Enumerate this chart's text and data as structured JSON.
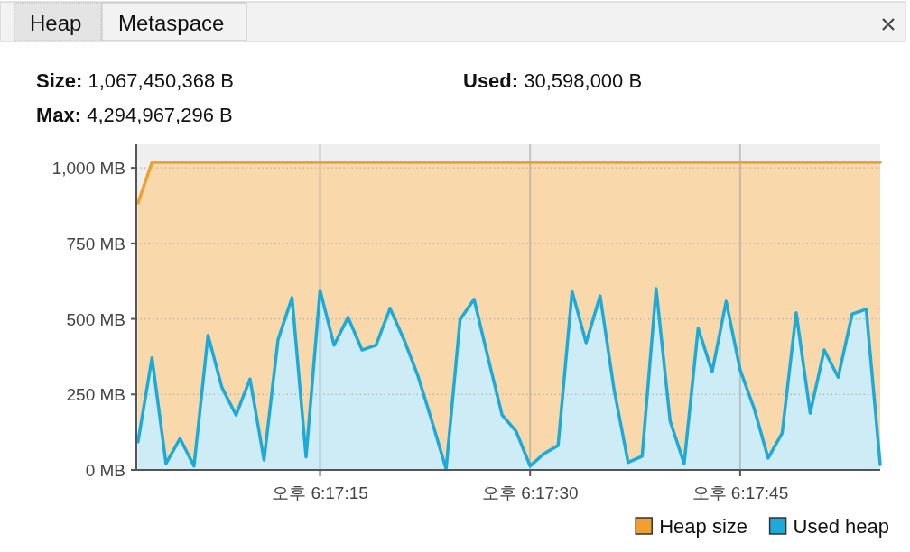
{
  "chart_data": {
    "type": "area",
    "annotations": [
      "Heap",
      "Metaspace",
      "Size: 1,067,450,368 B",
      "Used: 30,598,000 B",
      "Max: 4,294,967,296 B"
    ],
    "categories": [
      null,
      null,
      null,
      null,
      null,
      null,
      null,
      null,
      null,
      null,
      null,
      null,
      null,
      "오후 6:17:15",
      null,
      null,
      null,
      null,
      null,
      null,
      null,
      null,
      null,
      null,
      null,
      null,
      null,
      null,
      "오후 6:17:30",
      null,
      null,
      null,
      null,
      null,
      null,
      null,
      null,
      null,
      null,
      null,
      null,
      null,
      null,
      "오후 6:17:45",
      null,
      null,
      null,
      null,
      null,
      null,
      null,
      null,
      null,
      null
    ],
    "series": [
      {
        "name": "Used heap",
        "color": "#1eaad8",
        "values": [
          93,
          371,
          21,
          104,
          13,
          446,
          272,
          182,
          301,
          33,
          431,
          570,
          43,
          595,
          413,
          505,
          397,
          413,
          535,
          431,
          310,
          160,
          3,
          498,
          565,
          371,
          182,
          128,
          13,
          54,
          81,
          591,
          421,
          576,
          265,
          25,
          45,
          600,
          162,
          21,
          469,
          325,
          558,
          331,
          203,
          39,
          122,
          520,
          188,
          397,
          307,
          516,
          532,
          18
        ]
      },
      {
        "name": "Heap size",
        "color": "#f0a030",
        "values": [
          884,
          1018,
          1018,
          1018,
          1018,
          1018,
          1018,
          1018,
          1018,
          1018,
          1018,
          1018,
          1018,
          1018,
          1018,
          1018,
          1018,
          1018,
          1018,
          1018,
          1018,
          1018,
          1018,
          1018,
          1018,
          1018,
          1018,
          1018,
          1018,
          1018,
          1018,
          1018,
          1018,
          1018,
          1018,
          1018,
          1018,
          1018,
          1018,
          1018,
          1018,
          1018,
          1018,
          1018,
          1018,
          1018,
          1018,
          1018,
          1018,
          1018,
          1018,
          1018,
          1018,
          1018
        ]
      }
    ],
    "ylim": [
      0,
      1078
    ],
    "yticks": [
      {
        "value": 0,
        "label": "0 MB"
      },
      {
        "value": 250,
        "label": "250 MB"
      },
      {
        "value": 500,
        "label": "500 MB"
      },
      {
        "value": 750,
        "label": "750 MB"
      },
      {
        "value": 1000,
        "label": "1,000 MB"
      }
    ],
    "grid": true,
    "legend": "bottom right",
    "marker": "none",
    "line_style": "solid"
  }
}
